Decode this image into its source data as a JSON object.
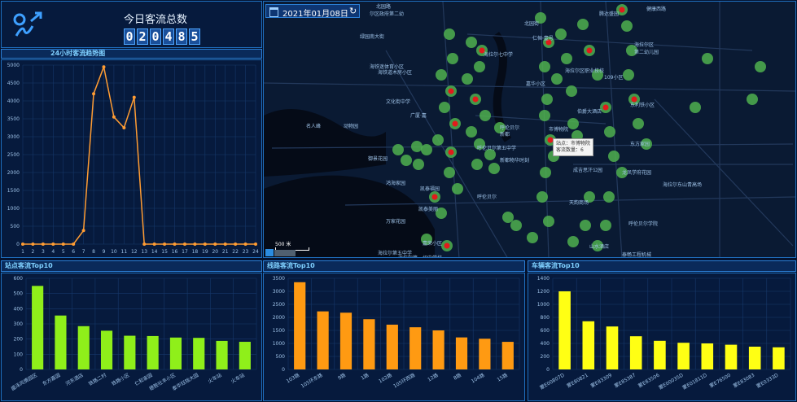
{
  "header": {
    "title": "今日客流总数",
    "total_digits": [
      "0",
      "2",
      "0",
      "4",
      "8",
      "5"
    ]
  },
  "map": {
    "date": "2021年01月08日",
    "tooltip_line1": "站点：市博物院",
    "tooltip_line2": "客流数量：6",
    "scale_label": "500 米",
    "labels": [
      "北园路",
      "尔区政府第二幼",
      "北园街",
      "腾达盛园",
      "健康西路",
      "海拉尔区",
      "第二幼儿园",
      "绿园南大街",
      "海铁迷体育小区",
      "海拉尔七中学",
      "仁恒·壹号",
      "海铁道木房小区",
      "海拉尔区职业技校",
      "嘉华小区",
      "109小区",
      "东利铁小区",
      "文化街中学",
      "伯爵大酒店",
      "广厦·嘉",
      "名人峰",
      "动物园",
      "呼伦贝尔",
      "新都",
      "市博物院",
      "东方家园",
      "御景花园",
      "呼伦贝尔第五中学",
      "新都物华时刻",
      "成吉思汗公园",
      "龙凤学府花园",
      "海拉尔东山青高场",
      "鸿海家园",
      "凯泰福园",
      "呼伦贝尔",
      "天韵商场",
      "凯泰美丽",
      "呼伦贝尔学院",
      "万家花园",
      "海拉尔第五中学",
      "嘉荣小区",
      "山水酒店",
      "海拉尔第一初中学校",
      "泰畅工程机械"
    ]
  },
  "line_chart": {
    "title": "24小时客流趋势图",
    "chart_data": {
      "type": "line",
      "x": [
        1,
        2,
        3,
        4,
        5,
        6,
        7,
        8,
        9,
        10,
        11,
        12,
        13,
        14,
        15,
        16,
        17,
        18,
        19,
        20,
        21,
        22,
        23,
        24
      ],
      "values": [
        0,
        0,
        0,
        0,
        0,
        0,
        380,
        4200,
        4950,
        3550,
        3250,
        4100,
        0,
        0,
        0,
        0,
        0,
        0,
        0,
        0,
        0,
        0,
        0,
        0
      ],
      "ylim": [
        0,
        5000
      ],
      "yticks": [
        0,
        500,
        1000,
        1500,
        2000,
        2500,
        3000,
        3500,
        4000,
        4500,
        5000
      ],
      "color": "#ff9c33"
    }
  },
  "station_chart": {
    "title": "站点客流Top10",
    "chart_data": {
      "type": "bar",
      "categories": [
        "盛泽风情园区",
        "东方嘉园",
        "河东酒店",
        "铁路二村",
        "铁路小区",
        "仁和家园",
        "德胜社丰小区",
        "泰华钰铭大园",
        "火车站",
        "火车站"
      ],
      "values": [
        550,
        355,
        285,
        255,
        222,
        220,
        210,
        208,
        188,
        182
      ],
      "ylim": [
        0,
        600
      ],
      "yticks": [
        0,
        100,
        200,
        300,
        400,
        500,
        600
      ],
      "color": "#8fef1a"
    }
  },
  "line_route_chart": {
    "title": "线路客流Top10",
    "chart_data": {
      "type": "bar",
      "categories": [
        "103路",
        "105环东路",
        "9路",
        "1路",
        "102路",
        "105环西路",
        "12路",
        "8路",
        "104路",
        "15路"
      ],
      "values": [
        3350,
        2230,
        2180,
        1930,
        1720,
        1620,
        1500,
        1230,
        1180,
        1060
      ],
      "ylim": [
        0,
        3500
      ],
      "yticks": [
        0,
        500,
        1000,
        1500,
        2000,
        2500,
        3000,
        3500
      ],
      "color": "#ff9a12"
    }
  },
  "vehicle_chart": {
    "title": "车辆客流Top10",
    "chart_data": {
      "type": "bar",
      "categories": [
        "蒙E00807D",
        "蒙E80821",
        "蒙E83309",
        "蒙E85387",
        "蒙E83506",
        "蒙E00035D",
        "蒙E01811D",
        "蒙E76500",
        "蒙E83083",
        "蒙E0333D"
      ],
      "values": [
        1200,
        740,
        660,
        510,
        440,
        410,
        400,
        380,
        350,
        340
      ],
      "ylim": [
        0,
        1400
      ],
      "yticks": [
        0,
        200,
        400,
        600,
        800,
        1000,
        1200,
        1400
      ],
      "color": "#ffff14"
    }
  }
}
